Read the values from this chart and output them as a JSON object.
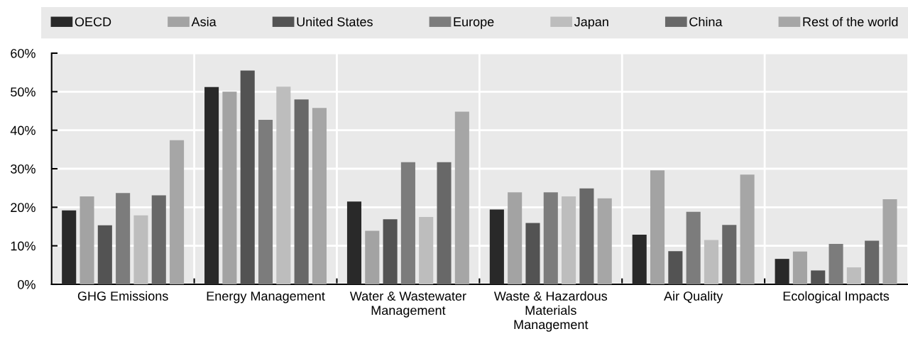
{
  "chart_data": {
    "type": "bar",
    "categories": [
      "GHG Emissions",
      "Energy Management",
      "Water & Wastewater\nManagement",
      "Waste & Hazardous\nMaterials\nManagement",
      "Air Quality",
      "Ecological Impacts"
    ],
    "series": [
      {
        "name": "OECD",
        "color": "#292929",
        "values": [
          19.2,
          51.2,
          21.5,
          19.4,
          12.9,
          6.6
        ]
      },
      {
        "name": "Asia",
        "color": "#a3a3a3",
        "values": [
          22.8,
          50.0,
          13.9,
          23.9,
          29.6,
          8.5
        ]
      },
      {
        "name": "United States",
        "color": "#535353",
        "values": [
          15.3,
          55.5,
          16.9,
          15.9,
          8.6,
          3.6
        ]
      },
      {
        "name": "Europe",
        "color": "#7c7c7c",
        "values": [
          23.7,
          42.7,
          31.7,
          23.9,
          18.8,
          10.5
        ]
      },
      {
        "name": "Japan",
        "color": "#bdbdbd",
        "values": [
          17.9,
          51.3,
          17.5,
          22.8,
          11.5,
          4.4
        ]
      },
      {
        "name": "China",
        "color": "#686868",
        "values": [
          23.1,
          48.0,
          31.7,
          24.9,
          15.4,
          11.3
        ]
      },
      {
        "name": "Rest of the world",
        "color": "#a6a6a6",
        "values": [
          37.4,
          45.8,
          44.8,
          22.3,
          28.5,
          22.1
        ]
      }
    ],
    "ylim": [
      0,
      60
    ],
    "yticks": [
      {
        "value": 0,
        "label": "0%"
      },
      {
        "value": 10,
        "label": "10%"
      },
      {
        "value": 20,
        "label": "20%"
      },
      {
        "value": 30,
        "label": "30%"
      },
      {
        "value": 40,
        "label": "40%"
      },
      {
        "value": 50,
        "label": "50%"
      },
      {
        "value": 60,
        "label": "60%"
      }
    ],
    "grid": true,
    "legend": "top"
  }
}
